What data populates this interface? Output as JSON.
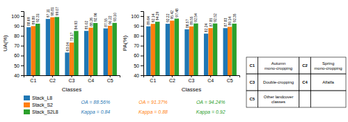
{
  "chart_data": [
    {
      "type": "bar",
      "categories": [
        "C1",
        "C2",
        "C3",
        "C4",
        "C5"
      ],
      "series": [
        {
          "name": "Stack_L8",
          "color": "#1f77b4",
          "values": [
            88.69,
            97.11,
            63.04,
            85.02,
            87.55
          ],
          "value_labels": [
            "88.69",
            "97.11",
            "63.04",
            "85.02",
            "87.55"
          ]
        },
        {
          "name": "Stack_S2",
          "color": "#ff7f0e",
          "values": [
            89.89,
            98.81,
            73.17,
            88.26,
            90.22
          ],
          "value_labels": [
            "89.89",
            "98.81",
            "73.17",
            "88.26",
            "90.22"
          ]
        },
        {
          "name": "Stack_S2L8",
          "color": "#2ca02c",
          "values": [
            92.31,
            99.07,
            84.93,
            92.96,
            93.1
          ],
          "value_labels": [
            "92.31",
            "99.07",
            "84.93",
            "92.96",
            "93.10"
          ]
        }
      ],
      "xlabel": "Classes",
      "ylabel": "UA(%)",
      "ylim": [
        40,
        105
      ],
      "yticks": [
        40,
        50,
        60,
        70,
        80,
        90,
        100
      ],
      "data_labels": true,
      "grid": false,
      "legend": "bottom",
      "annotations": [
        {
          "text": "OA = 88.56%",
          "color": "#1f77b4"
        },
        {
          "text": "OA = 91.37%",
          "color": "#ff7f0e"
        },
        {
          "text": "OA = 94.24%",
          "color": "#2ca02c"
        },
        {
          "text": "Kappa = 0.84",
          "color": "#1f77b4"
        },
        {
          "text": "Kappa = 0.88",
          "color": "#ff7f0e"
        },
        {
          "text": "Kappa = 0.92",
          "color": "#2ca02c"
        }
      ]
    },
    {
      "type": "bar",
      "categories": [
        "C1",
        "C2",
        "C3",
        "C4",
        "C5"
      ],
      "series": [
        {
          "name": "Stack_L8",
          "color": "#1f77b4",
          "values": [
            89.64,
            92.22,
            86.57,
            82.24,
            87.83
          ],
          "value_labels": [
            "89.64",
            "92.22",
            "86.57",
            "82.24",
            "87.83"
          ]
        },
        {
          "name": "Stack_S2",
          "color": "#ff7f0e",
          "values": [
            92.14,
            95.42,
            89.55,
            87.85,
            89.14
          ],
          "value_labels": [
            "92.14",
            "95.42",
            "89.55",
            "87.85",
            "89.14"
          ]
        },
        {
          "name": "Stack_S2L8",
          "color": "#2ca02c",
          "values": [
            94.29,
            97.48,
            92.54,
            92.52,
            92.35
          ],
          "value_labels": [
            "94.29",
            "97.48",
            "92.54",
            "92.52",
            "92.35"
          ]
        }
      ],
      "xlabel": "Classes",
      "ylabel": "PA(%)",
      "ylim": [
        40,
        105
      ],
      "yticks": [
        40,
        50,
        60,
        70,
        80,
        90,
        100
      ],
      "data_labels": true,
      "grid": false
    }
  ],
  "table": [
    [
      "C1",
      "Autumn mono-cropping",
      "C2",
      "Spring mono-cropping"
    ],
    [
      "C3",
      "Double-cropping",
      "C4",
      "Alfalfa"
    ],
    [
      "C5",
      "Other landcover classes"
    ]
  ]
}
